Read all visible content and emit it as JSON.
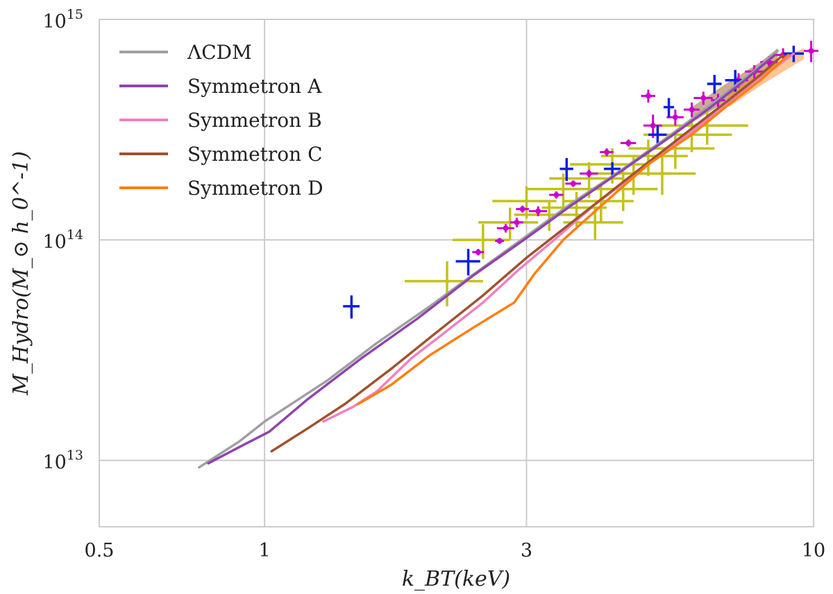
{
  "chart_data": {
    "type": "line",
    "title": "",
    "xlabel": "k_BT(keV)",
    "ylabel": "M_Hydro(M_⊙ h_0^-1)",
    "xscale": "log",
    "yscale": "log",
    "xlim": [
      0.5,
      10
    ],
    "ylim": [
      5000000000000.0,
      1000000000000000.0
    ],
    "grid": true,
    "legend_position": "top-left",
    "x_ticks": [
      {
        "value": 0.5,
        "label": "0.5"
      },
      {
        "value": 1,
        "label": "1"
      },
      {
        "value": 3,
        "label": "3"
      },
      {
        "value": 10,
        "label": "10"
      }
    ],
    "y_ticks": [
      {
        "value": 10000000000000.0,
        "base": "10",
        "exp": "13"
      },
      {
        "value": 100000000000000.0,
        "base": "10",
        "exp": "14"
      },
      {
        "value": 1000000000000000.0,
        "base": "10",
        "exp": "15"
      }
    ],
    "series": [
      {
        "name": "ΛCDM",
        "color": "#a0a0a0",
        "x": [
          0.76,
          0.9,
          1.0,
          1.3,
          1.6,
          2.0,
          2.5,
          3.0,
          3.6,
          4.5,
          5.5,
          6.5,
          7.5,
          8.6
        ],
        "y": [
          9300000000000.0,
          12200000000000.0,
          15000000000000.0,
          23000000000000.0,
          34000000000000.0,
          50000000000000.0,
          75000000000000.0,
          104000000000000.0,
          145000000000000.0,
          210000000000000.0,
          300000000000000.0,
          410000000000000.0,
          540000000000000.0,
          720000000000000.0
        ]
      },
      {
        "name": "Symmetron A",
        "color": "#8e44ad",
        "x": [
          0.79,
          0.9,
          1.02,
          1.2,
          1.5,
          1.9,
          2.4,
          3.0,
          3.6,
          4.5,
          5.5,
          6.5,
          7.5,
          8.5
        ],
        "y": [
          9700000000000.0,
          11500000000000.0,
          13500000000000.0,
          19000000000000.0,
          29000000000000.0,
          44000000000000.0,
          69000000000000.0,
          102000000000000.0,
          142000000000000.0,
          208000000000000.0,
          295000000000000.0,
          400000000000000.0,
          530000000000000.0,
          690000000000000.0
        ]
      },
      {
        "name": "Symmetron B",
        "color": "#f080c0",
        "x": [
          1.28,
          1.45,
          1.6,
          1.85,
          2.1,
          2.5,
          2.9,
          3.4,
          4.0,
          5.0,
          6.0,
          7.0,
          8.0,
          9.2
        ],
        "y": [
          15000000000000.0,
          17500000000000.0,
          20500000000000.0,
          29000000000000.0,
          37000000000000.0,
          52000000000000.0,
          73000000000000.0,
          102000000000000.0,
          145000000000000.0,
          220000000000000.0,
          310000000000000.0,
          420000000000000.0,
          540000000000000.0,
          700000000000000.0
        ]
      },
      {
        "name": "Symmetron C",
        "color": "#a0522d",
        "x": [
          1.03,
          1.2,
          1.4,
          1.7,
          2.0,
          2.5,
          3.0,
          3.5,
          4.2,
          5.0,
          6.0,
          7.0,
          8.0,
          8.8
        ],
        "y": [
          11000000000000.0,
          14000000000000.0,
          18000000000000.0,
          26000000000000.0,
          36000000000000.0,
          56000000000000.0,
          83000000000000.0,
          112000000000000.0,
          160000000000000.0,
          225000000000000.0,
          320000000000000.0,
          430000000000000.0,
          560000000000000.0,
          690000000000000.0
        ]
      },
      {
        "name": "Symmetron D",
        "color": "#ff7f0e",
        "x": [
          1.48,
          1.7,
          2.0,
          2.4,
          2.85,
          3.1,
          3.5,
          4.0,
          4.5,
          5.0,
          6.0,
          7.0,
          8.0,
          9.0
        ],
        "y": [
          18000000000000.0,
          22000000000000.0,
          30000000000000.0,
          40000000000000.0,
          52000000000000.0,
          70000000000000.0,
          100000000000000.0,
          135000000000000.0,
          175000000000000.0,
          220000000000000.0,
          300000000000000.0,
          410000000000000.0,
          530000000000000.0,
          690000000000000.0
        ]
      }
    ],
    "observations": [
      {
        "name": "blue-data",
        "color": "#0a1fe0",
        "points": [
          {
            "x": 1.44,
            "y": 50000000000000.0,
            "xerr": 0.05,
            "yerr": 6000000000000.0
          },
          {
            "x": 2.35,
            "y": 80000000000000.0,
            "xerr": 0.12,
            "yerr": 11000000000000.0
          },
          {
            "x": 3.55,
            "y": 210000000000000.0,
            "xerr": 0.1,
            "yerr": 25000000000000.0
          },
          {
            "x": 4.3,
            "y": 210000000000000.0,
            "xerr": 0.15,
            "yerr": 15000000000000.0
          },
          {
            "x": 5.2,
            "y": 300000000000000.0,
            "xerr": 0.2,
            "yerr": 30000000000000.0
          },
          {
            "x": 5.45,
            "y": 400000000000000.0,
            "xerr": 0.12,
            "yerr": 40000000000000.0
          },
          {
            "x": 6.6,
            "y": 510000000000000.0,
            "xerr": 0.2,
            "yerr": 50000000000000.0
          },
          {
            "x": 7.2,
            "y": 530000000000000.0,
            "xerr": 0.3,
            "yerr": 60000000000000.0
          },
          {
            "x": 9.2,
            "y": 700000000000000.0,
            "xerr": 0.4,
            "yerr": 60000000000000.0
          }
        ]
      },
      {
        "name": "magenta-data",
        "color": "#cc00cc",
        "points": [
          {
            "x": 2.45,
            "y": 88000000000000.0,
            "xerr": 0.06,
            "yerr": 3000000000000.0
          },
          {
            "x": 2.68,
            "y": 99000000000000.0,
            "xerr": 0.05,
            "yerr": 3000000000000.0
          },
          {
            "x": 2.75,
            "y": 113000000000000.0,
            "xerr": 0.1,
            "yerr": 5000000000000.0
          },
          {
            "x": 2.88,
            "y": 120000000000000.0,
            "xerr": 0.08,
            "yerr": 6000000000000.0
          },
          {
            "x": 2.95,
            "y": 138000000000000.0,
            "xerr": 0.08,
            "yerr": 5000000000000.0
          },
          {
            "x": 3.15,
            "y": 135000000000000.0,
            "xerr": 0.12,
            "yerr": 7000000000000.0
          },
          {
            "x": 3.4,
            "y": 160000000000000.0,
            "xerr": 0.1,
            "yerr": 6000000000000.0
          },
          {
            "x": 3.65,
            "y": 180000000000000.0,
            "xerr": 0.12,
            "yerr": 6000000000000.0
          },
          {
            "x": 3.9,
            "y": 200000000000000.0,
            "xerr": 0.15,
            "yerr": 8000000000000.0
          },
          {
            "x": 4.2,
            "y": 250000000000000.0,
            "xerr": 0.12,
            "yerr": 10000000000000.0
          },
          {
            "x": 4.6,
            "y": 275000000000000.0,
            "xerr": 0.15,
            "yerr": 10000000000000.0
          },
          {
            "x": 5.0,
            "y": 450000000000000.0,
            "xerr": 0.15,
            "yerr": 30000000000000.0
          },
          {
            "x": 5.1,
            "y": 330000000000000.0,
            "xerr": 0.2,
            "yerr": 40000000000000.0
          },
          {
            "x": 5.6,
            "y": 360000000000000.0,
            "xerr": 0.2,
            "yerr": 30000000000000.0
          },
          {
            "x": 6.0,
            "y": 390000000000000.0,
            "xerr": 0.2,
            "yerr": 30000000000000.0
          },
          {
            "x": 6.3,
            "y": 440000000000000.0,
            "xerr": 0.25,
            "yerr": 30000000000000.0
          },
          {
            "x": 6.7,
            "y": 430000000000000.0,
            "xerr": 0.2,
            "yerr": 30000000000000.0
          },
          {
            "x": 7.3,
            "y": 530000000000000.0,
            "xerr": 0.3,
            "yerr": 40000000000000.0
          },
          {
            "x": 7.8,
            "y": 580000000000000.0,
            "xerr": 0.3,
            "yerr": 40000000000000.0
          },
          {
            "x": 8.3,
            "y": 640000000000000.0,
            "xerr": 0.3,
            "yerr": 40000000000000.0
          },
          {
            "x": 8.8,
            "y": 690000000000000.0,
            "xerr": 0.35,
            "yerr": 50000000000000.0
          },
          {
            "x": 9.9,
            "y": 720000000000000.0,
            "xerr": 0.3,
            "yerr": 80000000000000.0
          }
        ]
      },
      {
        "name": "yellow-data",
        "color": "#c2c21a",
        "points": [
          {
            "x": 2.15,
            "y": 65000000000000.0,
            "xerr": 0.35,
            "yerr": 15000000000000.0
          },
          {
            "x": 2.5,
            "y": 100000000000000.0,
            "xerr": 0.3,
            "yerr": 18000000000000.0
          },
          {
            "x": 2.8,
            "y": 120000000000000.0,
            "xerr": 0.35,
            "yerr": 20000000000000.0
          },
          {
            "x": 3.0,
            "y": 150000000000000.0,
            "xerr": 0.4,
            "yerr": 25000000000000.0
          },
          {
            "x": 3.3,
            "y": 130000000000000.0,
            "xerr": 0.45,
            "yerr": 20000000000000.0
          },
          {
            "x": 3.5,
            "y": 170000000000000.0,
            "xerr": 0.5,
            "yerr": 30000000000000.0
          },
          {
            "x": 3.7,
            "y": 140000000000000.0,
            "xerr": 0.5,
            "yerr": 25000000000000.0
          },
          {
            "x": 3.9,
            "y": 190000000000000.0,
            "xerr": 0.6,
            "yerr": 35000000000000.0
          },
          {
            "x": 4.1,
            "y": 150000000000000.0,
            "xerr": 0.6,
            "yerr": 30000000000000.0
          },
          {
            "x": 4.3,
            "y": 220000000000000.0,
            "xerr": 0.7,
            "yerr": 40000000000000.0
          },
          {
            "x": 4.5,
            "y": 170000000000000.0,
            "xerr": 0.7,
            "yerr": 35000000000000.0
          },
          {
            "x": 4.7,
            "y": 200000000000000.0,
            "xerr": 0.8,
            "yerr": 40000000000000.0
          },
          {
            "x": 5.0,
            "y": 240000000000000.0,
            "xerr": 0.9,
            "yerr": 45000000000000.0
          },
          {
            "x": 5.3,
            "y": 200000000000000.0,
            "xerr": 0.8,
            "yerr": 40000000000000.0
          },
          {
            "x": 5.6,
            "y": 260000000000000.0,
            "xerr": 1.0,
            "yerr": 50000000000000.0
          },
          {
            "x": 6.0,
            "y": 300000000000000.0,
            "xerr": 1.1,
            "yerr": 50000000000000.0
          },
          {
            "x": 6.4,
            "y": 330000000000000.0,
            "xerr": 1.2,
            "yerr": 60000000000000.0
          },
          {
            "x": 4.0,
            "y": 120000000000000.0,
            "xerr": 0.5,
            "yerr": 20000000000000.0
          }
        ]
      }
    ],
    "ribbons": [
      {
        "name": "lcdm-band",
        "color": "#8b4513",
        "x": [
          6.0,
          7.0,
          8.0,
          8.6
        ],
        "y_low": [
          340000000000000.0,
          430000000000000.0,
          530000000000000.0,
          620000000000000.0
        ],
        "y_high": [
          400000000000000.0,
          520000000000000.0,
          640000000000000.0,
          740000000000000.0
        ]
      },
      {
        "name": "orange-band",
        "color": "#ff7f0e",
        "x": [
          7.0,
          8.0,
          9.0,
          9.6
        ],
        "y_low": [
          400000000000000.0,
          500000000000000.0,
          600000000000000.0,
          660000000000000.0
        ],
        "y_high": [
          460000000000000.0,
          580000000000000.0,
          690000000000000.0,
          740000000000000.0
        ]
      }
    ]
  }
}
